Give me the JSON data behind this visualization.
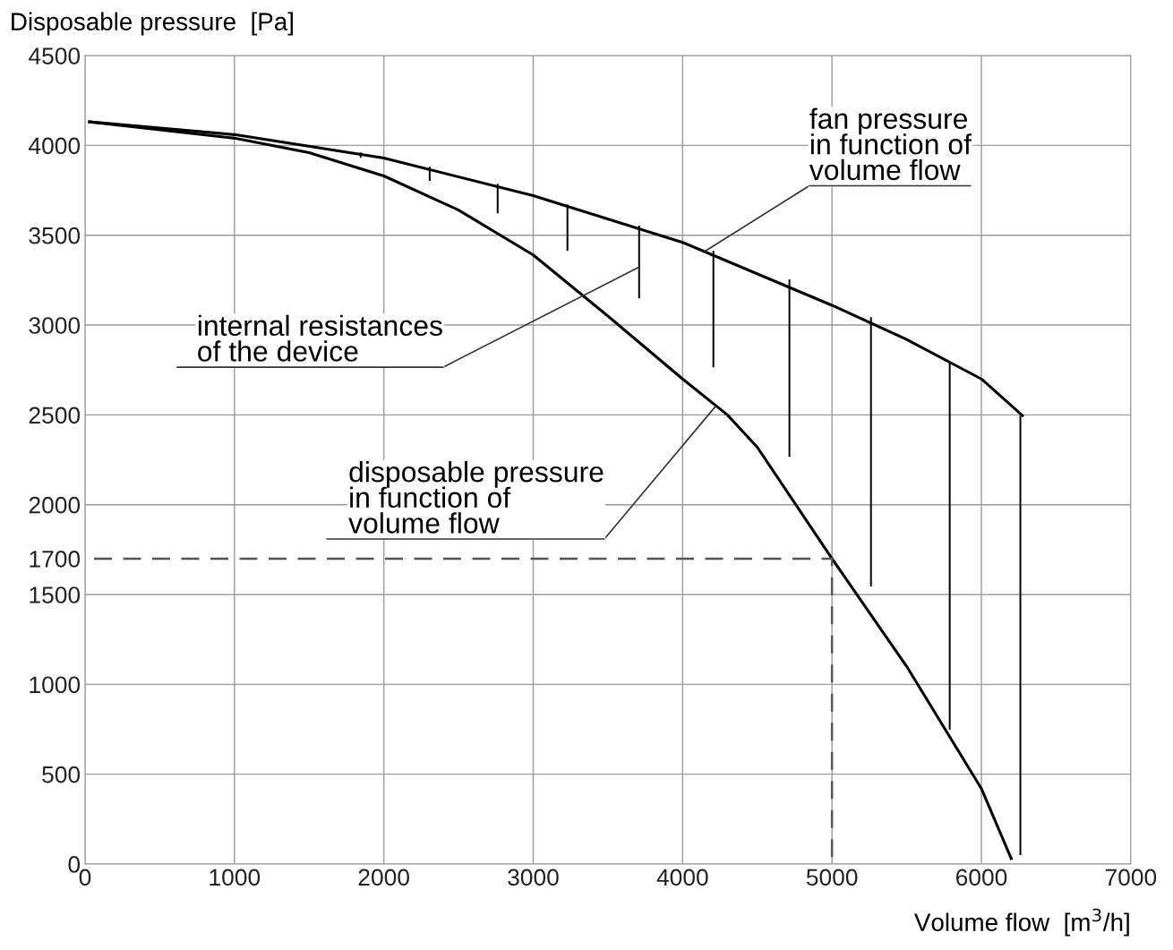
{
  "chart_data": {
    "type": "line",
    "xlabel": "Volume flow  [m$^{3}$/h]",
    "ylabel": "Disposable pressure  [Pa]",
    "xlim": [
      0,
      7000
    ],
    "xticks": [
      0,
      1000,
      2000,
      3000,
      4000,
      5000,
      6000,
      7000
    ],
    "ylim": [
      0,
      4500
    ],
    "yticks": [
      0,
      500,
      1000,
      1500,
      {
        "value": 1700,
        "label": "1700"
      },
      2000,
      2500,
      3000,
      3500,
      4000,
      4500
    ],
    "grid": true,
    "marker": "none",
    "series": [
      {
        "color": "#000000",
        "line_style": "solid",
        "x": [
          30,
          1000,
          2000,
          3000,
          4000,
          5000,
          5500,
          6000,
          6275
        ],
        "values": [
          4131,
          4060,
          3930,
          3720,
          3460,
          3110,
          2920,
          2700,
          2496
        ]
      },
      {
        "color": "#000000",
        "line_style": "solid",
        "x": [
          30,
          1000,
          1500,
          2000,
          2500,
          3000,
          3500,
          4000,
          4300,
          4500,
          5000,
          5500,
          6000,
          6200
        ],
        "values": [
          4131,
          4040,
          3960,
          3830,
          3640,
          3390,
          3050,
          2700,
          2500,
          2320,
          1700,
          1100,
          420,
          30
        ]
      },
      {
        "type": "bar",
        "color": "#000000",
        "x": [
          1845,
          2307,
          2762,
          3229,
          3709,
          4206,
          4715,
          5261,
          5788,
          6261
        ],
        "base": [
          3931,
          3802,
          3622,
          3413,
          3149,
          2765,
          2267,
          1545,
          747,
          50
        ],
        "values": [
          30,
          79,
          165,
          259,
          404,
          648,
          987,
          1499,
          2048,
          2446
        ]
      },
      {
        "type": "line",
        "color": "#555555",
        "line_style": "dashed",
        "x": [
          60,
          5000,
          5000
        ],
        "values": [
          1700,
          1700,
          0
        ]
      }
    ],
    "annotations": [
      {
        "text": "fan pressure\nin function of\nvolume flow",
        "x": 4146,
        "y": 3409
      },
      {
        "text": "internal resistances\nof the device",
        "x": 3709,
        "y": 3323
      },
      {
        "text": "disposable pressure\nin function of\nvolume flow",
        "x": 4224,
        "y": 2551
      }
    ]
  }
}
